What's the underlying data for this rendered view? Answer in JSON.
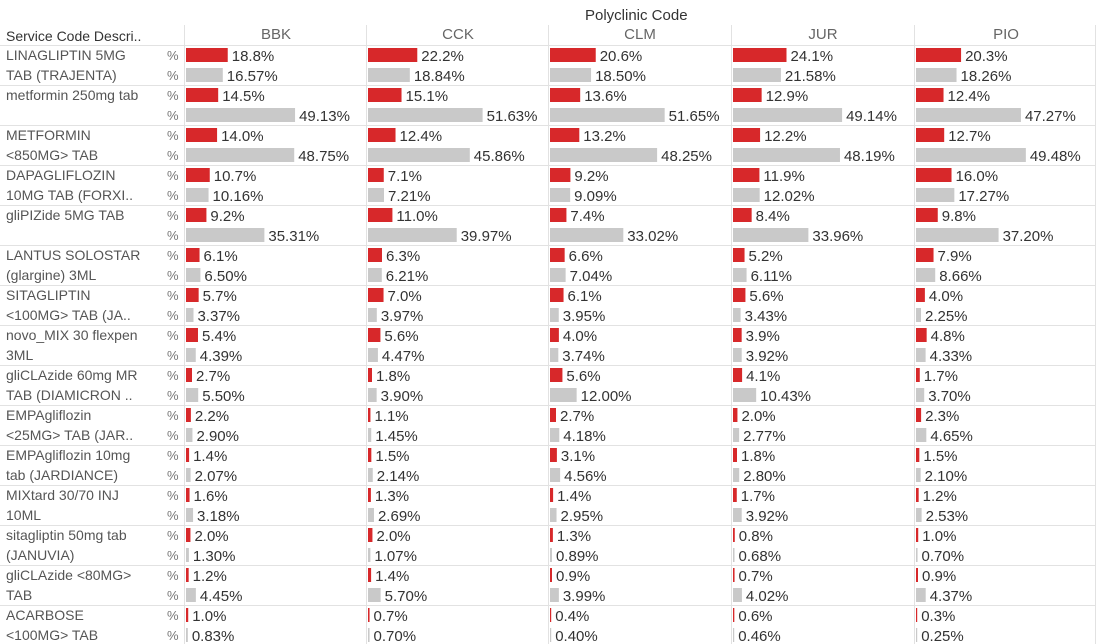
{
  "header": {
    "columns_title": "Polyclinic Code",
    "row_header": "Service Code Descri.."
  },
  "measure_symbol": "%",
  "colors": {
    "primary_bar": "#d7282a",
    "secondary_bar": "#c9c9c9",
    "grid": "#e2e2e2",
    "text": "#333333"
  },
  "chart_data": {
    "type": "bar",
    "orientation": "horizontal",
    "columns": [
      "BBK",
      "CCK",
      "CLM",
      "JUR",
      "PIO"
    ],
    "rows": [
      {
        "label_lines": [
          "LINAGLIPTIN 5MG",
          "TAB (TRAJENTA)"
        ],
        "primary": [
          18.8,
          22.2,
          20.6,
          24.1,
          20.3
        ],
        "secondary": [
          16.57,
          18.84,
          18.5,
          21.58,
          18.26
        ]
      },
      {
        "label_lines": [
          "metformin 250mg tab",
          ""
        ],
        "primary": [
          14.5,
          15.1,
          13.6,
          12.9,
          12.4
        ],
        "secondary": [
          49.13,
          51.63,
          51.65,
          49.14,
          47.27
        ]
      },
      {
        "label_lines": [
          "METFORMIN",
          "<850MG> TAB"
        ],
        "primary": [
          14.0,
          12.4,
          13.2,
          12.2,
          12.7
        ],
        "secondary": [
          48.75,
          45.86,
          48.25,
          48.19,
          49.48
        ]
      },
      {
        "label_lines": [
          "DAPAGLIFLOZIN",
          "10MG TAB (FORXI.."
        ],
        "primary": [
          10.7,
          7.1,
          9.2,
          11.9,
          16.0
        ],
        "secondary": [
          10.16,
          7.21,
          9.09,
          12.02,
          17.27
        ]
      },
      {
        "label_lines": [
          "gliPIZide 5MG TAB",
          ""
        ],
        "primary": [
          9.2,
          11.0,
          7.4,
          8.4,
          9.8
        ],
        "secondary": [
          35.31,
          39.97,
          33.02,
          33.96,
          37.2
        ]
      },
      {
        "label_lines": [
          "LANTUS SOLOSTAR",
          "(glargine) 3ML"
        ],
        "primary": [
          6.1,
          6.3,
          6.6,
          5.2,
          7.9
        ],
        "secondary": [
          6.5,
          6.21,
          7.04,
          6.11,
          8.66
        ]
      },
      {
        "label_lines": [
          "SITAGLIPTIN",
          "<100MG> TAB (JA.."
        ],
        "primary": [
          5.7,
          7.0,
          6.1,
          5.6,
          4.0
        ],
        "secondary": [
          3.37,
          3.97,
          3.95,
          3.43,
          2.25
        ]
      },
      {
        "label_lines": [
          "novo_MIX 30 flexpen",
          "3ML"
        ],
        "primary": [
          5.4,
          5.6,
          4.0,
          3.9,
          4.8
        ],
        "secondary": [
          4.39,
          4.47,
          3.74,
          3.92,
          4.33
        ]
      },
      {
        "label_lines": [
          "gliCLAzide 60mg MR",
          "TAB (DIAMICRON .."
        ],
        "primary": [
          2.7,
          1.8,
          5.6,
          4.1,
          1.7
        ],
        "secondary": [
          5.5,
          3.9,
          12.0,
          10.43,
          3.7
        ]
      },
      {
        "label_lines": [
          "EMPAgliflozin",
          "<25MG> TAB (JAR.."
        ],
        "primary": [
          2.2,
          1.1,
          2.7,
          2.0,
          2.3
        ],
        "secondary": [
          2.9,
          1.45,
          4.18,
          2.77,
          4.65
        ]
      },
      {
        "label_lines": [
          "EMPAgliflozin 10mg",
          "tab (JARDIANCE)"
        ],
        "primary": [
          1.4,
          1.5,
          3.1,
          1.8,
          1.5
        ],
        "secondary": [
          2.07,
          2.14,
          4.56,
          2.8,
          2.1
        ]
      },
      {
        "label_lines": [
          "MIXtard 30/70 INJ",
          "10ML"
        ],
        "primary": [
          1.6,
          1.3,
          1.4,
          1.7,
          1.2
        ],
        "secondary": [
          3.18,
          2.69,
          2.95,
          3.92,
          2.53
        ]
      },
      {
        "label_lines": [
          "sitagliptin 50mg tab",
          "(JANUVIA)"
        ],
        "primary": [
          2.0,
          2.0,
          1.3,
          0.8,
          1.0
        ],
        "secondary": [
          1.3,
          1.07,
          0.89,
          0.68,
          0.7
        ]
      },
      {
        "label_lines": [
          "gliCLAzide <80MG>",
          "TAB"
        ],
        "primary": [
          1.2,
          1.4,
          0.9,
          0.7,
          0.9
        ],
        "secondary": [
          4.45,
          5.7,
          3.99,
          4.02,
          4.37
        ]
      },
      {
        "label_lines": [
          "ACARBOSE",
          "<100MG> TAB"
        ],
        "primary": [
          1.0,
          0.7,
          0.4,
          0.6,
          0.3
        ],
        "secondary": [
          0.83,
          0.7,
          0.4,
          0.46,
          0.25
        ]
      }
    ]
  }
}
